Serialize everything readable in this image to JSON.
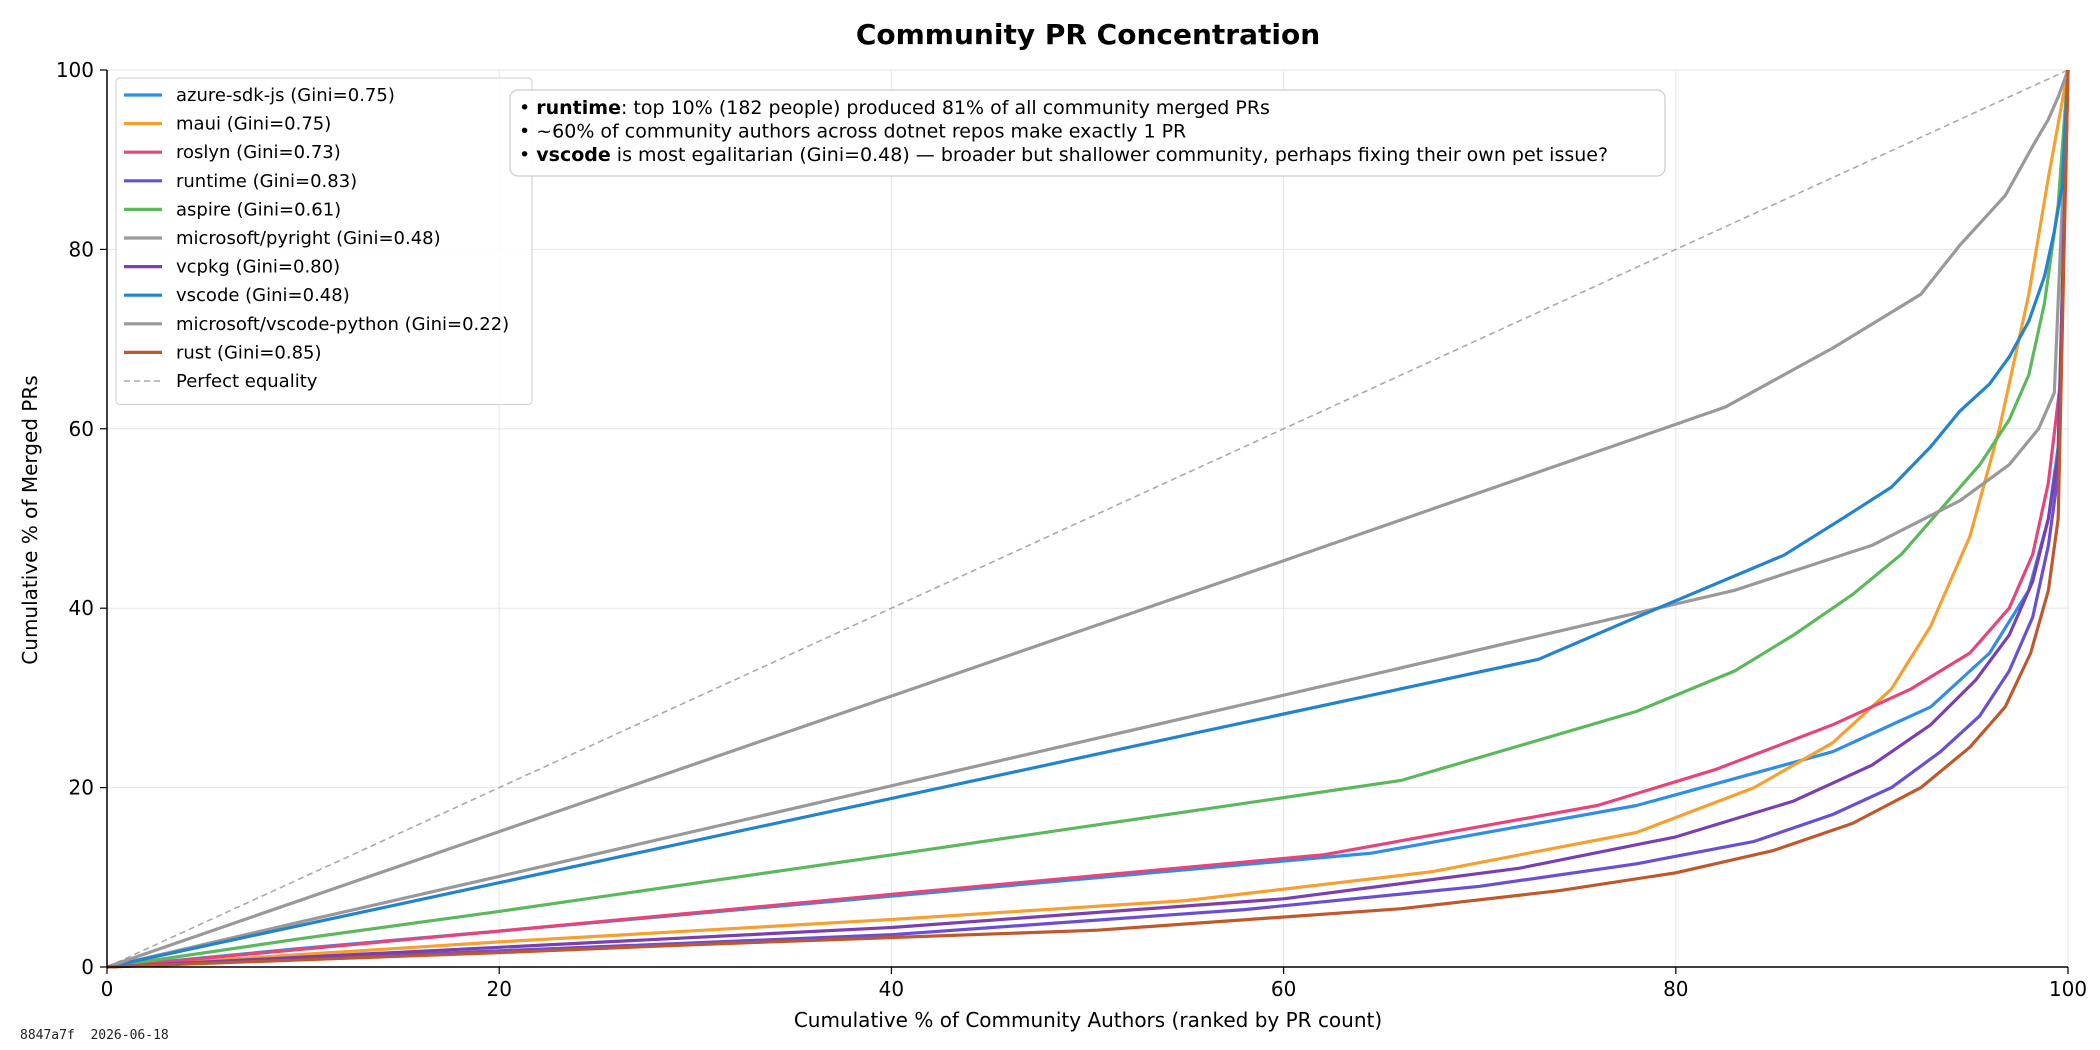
{
  "footer": {
    "hash": "8847a7f",
    "date": "2026-06-18"
  },
  "chart_data": {
    "type": "line",
    "title": "Community PR Concentration",
    "xlabel": "Cumulative % of Community Authors (ranked by PR count)",
    "ylabel": "Cumulative % of Merged PRs",
    "xlim": [
      0,
      100
    ],
    "ylim": [
      0,
      100
    ],
    "xticks": [
      0,
      20,
      40,
      60,
      80,
      100
    ],
    "yticks": [
      0,
      20,
      40,
      60,
      80,
      100
    ],
    "grid": true,
    "legend_position": "top-left",
    "annotation": [
      [
        {
          "text": "• ",
          "bold": false
        },
        {
          "text": "runtime",
          "bold": true
        },
        {
          "text": ": top 10% (182 people) produced 81% of all community merged PRs",
          "bold": false
        }
      ],
      [
        {
          "text": "• ~60% of community authors across dotnet repos make exactly 1 PR",
          "bold": false
        }
      ],
      [
        {
          "text": "• ",
          "bold": false
        },
        {
          "text": "vscode",
          "bold": true
        },
        {
          "text": " is most egalitarian (Gini=0.48) — broader but shallower community, perhaps fixing their own pet issue?",
          "bold": false
        }
      ]
    ],
    "series": [
      {
        "name": "azure-sdk-js (Gini=0.75)",
        "color": "#2e8ee8",
        "x": [
          0,
          10,
          20,
          40,
          64.5,
          78,
          88,
          93,
          96,
          98,
          99,
          99.5,
          100
        ],
        "y": [
          0,
          2.1,
          4.0,
          7.9,
          12.7,
          18.0,
          24.0,
          29.0,
          35.0,
          42.0,
          50.0,
          58.0,
          100
        ]
      },
      {
        "name": "maui (Gini=0.75)",
        "color": "#f5a030",
        "x": [
          0,
          10,
          20,
          40,
          55,
          67.5,
          78,
          84,
          88,
          91,
          93,
          95,
          96.5,
          98,
          99,
          100
        ],
        "y": [
          0,
          1.4,
          2.8,
          5.3,
          7.4,
          10.6,
          15.0,
          20.0,
          25.0,
          31.0,
          38.0,
          48.0,
          60.0,
          75.0,
          88.0,
          100
        ]
      },
      {
        "name": "roslyn (Gini=0.73)",
        "color": "#e5457a",
        "x": [
          0,
          10,
          20,
          40,
          62,
          76,
          82,
          88,
          92,
          95,
          97,
          98.2,
          99,
          99.6,
          100
        ],
        "y": [
          0,
          2.0,
          4.0,
          8.1,
          12.5,
          18.0,
          22.0,
          27.0,
          31.0,
          35.0,
          40.0,
          46.0,
          54.0,
          65.0,
          100
        ]
      },
      {
        "name": "runtime (Gini=0.83)",
        "color": "#6a4fd6",
        "x": [
          0,
          10,
          20,
          40,
          58,
          70,
          78,
          84,
          88,
          91,
          93.5,
          95.5,
          97,
          98.2,
          99,
          99.5,
          100
        ],
        "y": [
          0,
          0.9,
          1.8,
          3.6,
          6.4,
          9.0,
          11.5,
          14.0,
          17.0,
          20.0,
          24.0,
          28.0,
          33.0,
          39.0,
          47.0,
          55.0,
          100
        ]
      },
      {
        "name": "aspire (Gini=0.61)",
        "color": "#5cb85c",
        "x": [
          0,
          10,
          20,
          40,
          66,
          78,
          83,
          86,
          89,
          91.5,
          93.5,
          95.5,
          97,
          98,
          98.8,
          99.5,
          100
        ],
        "y": [
          0,
          3.2,
          6.2,
          12.5,
          20.8,
          28.5,
          33.0,
          37.0,
          41.5,
          46.0,
          51.0,
          56.0,
          61.0,
          66.0,
          74.0,
          85.0,
          100
        ]
      },
      {
        "name": "microsoft/pyright (Gini=0.48)",
        "color": "#999999",
        "x": [
          0,
          10,
          20,
          40,
          60,
          83,
          90,
          94.5,
          97,
          98.5,
          99.3,
          100
        ],
        "y": [
          0,
          5.1,
          10.1,
          20.2,
          30.3,
          42.0,
          47.0,
          52.0,
          56.0,
          60.0,
          64.0,
          100
        ]
      },
      {
        "name": "vcpkg (Gini=0.80)",
        "color": "#7b3fb0",
        "x": [
          0,
          10,
          20,
          40,
          60,
          72,
          80,
          86,
          90,
          93,
          95.3,
          97,
          98.2,
          99,
          99.5,
          100
        ],
        "y": [
          0,
          1.1,
          2.2,
          4.4,
          7.6,
          11.0,
          14.5,
          18.5,
          22.5,
          27.0,
          32.0,
          37.0,
          43.0,
          50.0,
          57.0,
          100
        ]
      },
      {
        "name": "vscode (Gini=0.48)",
        "color": "#2483cf",
        "x": [
          0,
          10,
          20,
          40,
          60,
          73,
          78,
          85.5,
          88.5,
          91,
          93,
          94.5,
          96,
          97,
          98,
          98.8,
          99.3,
          99.7,
          100
        ],
        "y": [
          0,
          4.7,
          9.4,
          18.8,
          28.2,
          34.3,
          39.0,
          45.9,
          50.0,
          53.5,
          58.0,
          62.0,
          65.0,
          68.0,
          72.0,
          77.0,
          82.0,
          87.0,
          100
        ]
      },
      {
        "name": "microsoft/vscode-python (Gini=0.22)",
        "color": "#999999",
        "x": [
          0,
          20,
          40,
          60,
          82.5,
          88,
          92.5,
          94.5,
          96.8,
          98.2,
          99,
          99.5,
          100
        ],
        "y": [
          0,
          15.1,
          30.2,
          45.3,
          62.4,
          69.0,
          75.0,
          80.5,
          86.0,
          91.5,
          94.5,
          97.0,
          100
        ]
      },
      {
        "name": "rust (Gini=0.85)",
        "color": "#c0582e",
        "x": [
          0,
          10,
          20,
          30,
          50.5,
          66,
          74,
          80,
          85,
          89,
          92.5,
          95,
          96.8,
          98.1,
          99,
          99.5,
          100
        ],
        "y": [
          0,
          0.8,
          1.6,
          2.5,
          4.1,
          6.5,
          8.5,
          10.5,
          13.0,
          16.0,
          20.0,
          24.5,
          29.0,
          35.0,
          42.0,
          50.0,
          100
        ]
      }
    ],
    "reference_line": {
      "name": "Perfect equality",
      "color": "#aaaaaa",
      "x": [
        0,
        100
      ],
      "y": [
        0,
        100
      ]
    }
  }
}
